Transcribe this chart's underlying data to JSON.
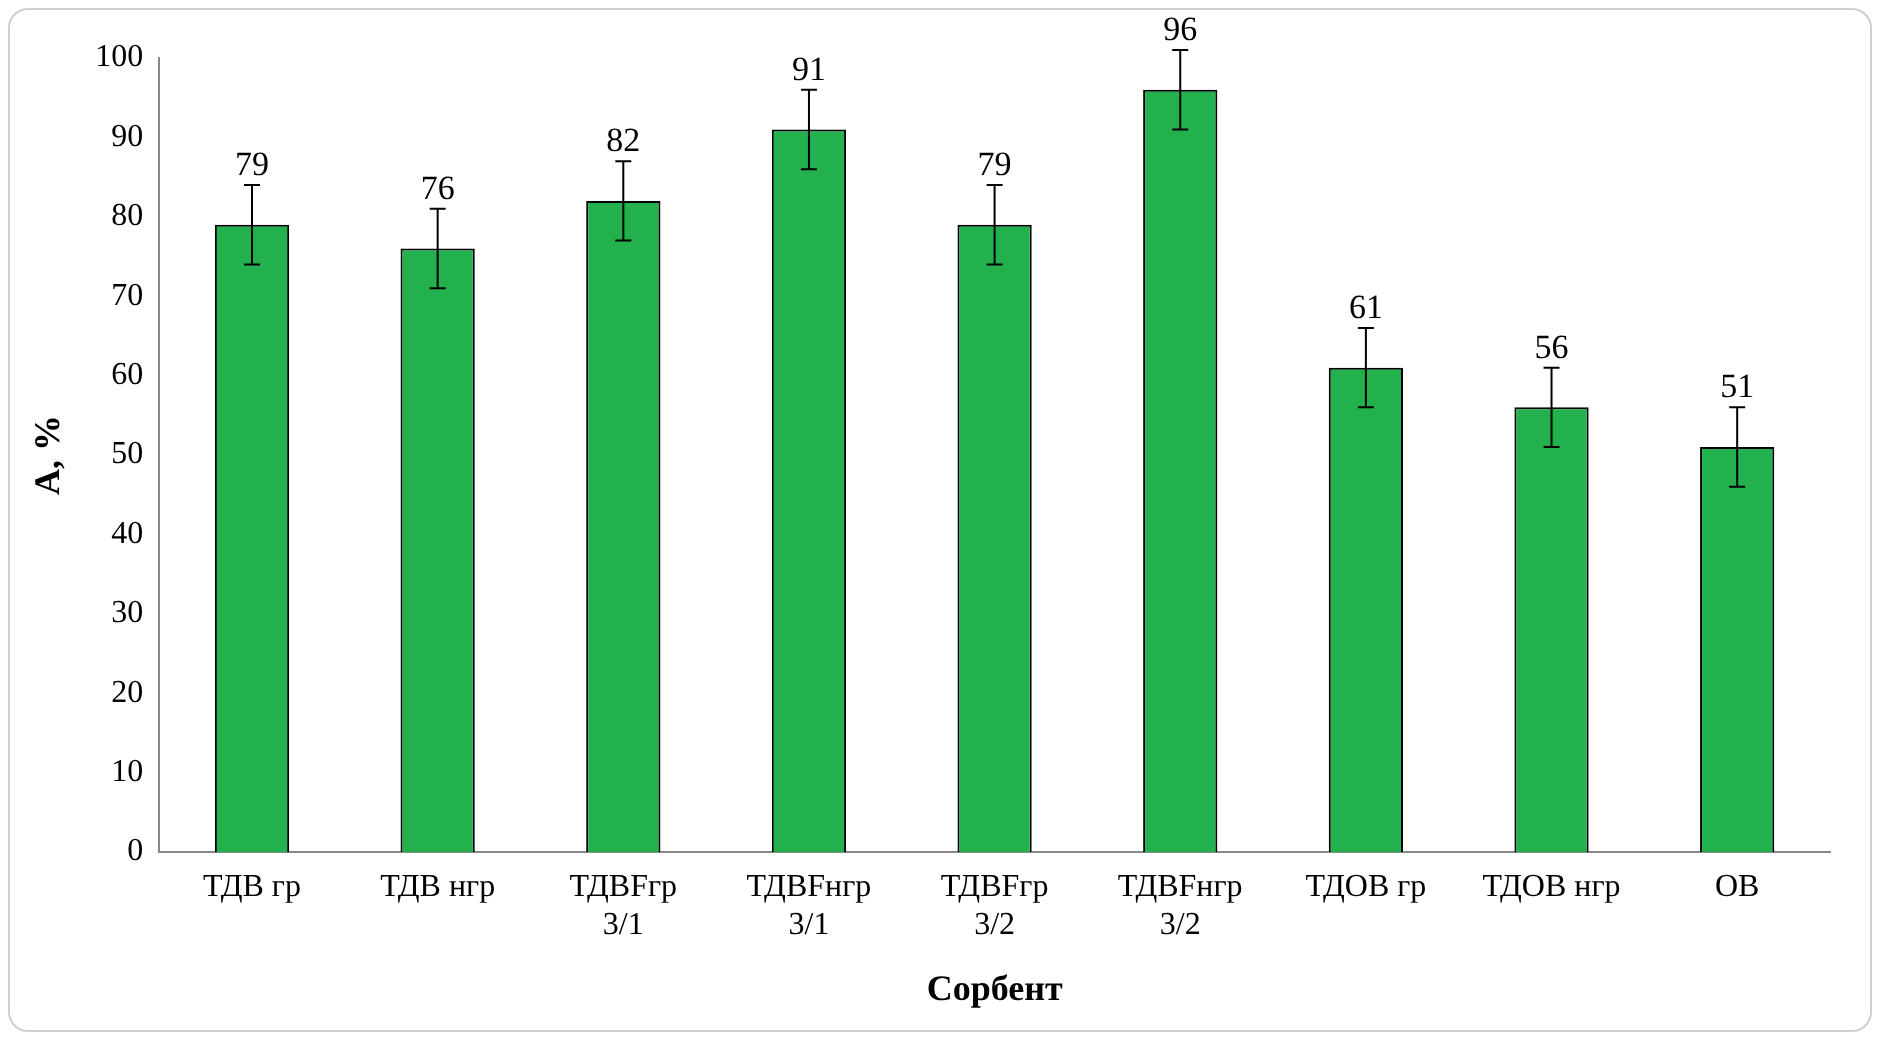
{
  "chart_data": {
    "type": "bar",
    "xlabel": "Сорбент",
    "ylabel": "А, %",
    "categories": [
      "ТДВ гр",
      "ТДВ нгр",
      "ТДВFгр\n3/1",
      "ТДВFнгр\n3/1",
      "ТДВFгр\n3/2",
      "ТДВFнгр\n3/2",
      "ТДОВ гр",
      "ТДОВ нгр",
      "ОВ"
    ],
    "values": [
      79,
      76,
      82,
      91,
      79,
      96,
      61,
      56,
      51
    ],
    "errors": [
      5,
      5,
      5,
      5,
      5,
      5,
      5,
      5,
      5
    ],
    "color": "#22b14c",
    "ylim": [
      0,
      100
    ],
    "yticks": [
      0,
      10,
      20,
      30,
      40,
      50,
      60,
      70,
      80,
      90,
      100
    ],
    "grid": false,
    "legend": false,
    "data_labels": true
  }
}
